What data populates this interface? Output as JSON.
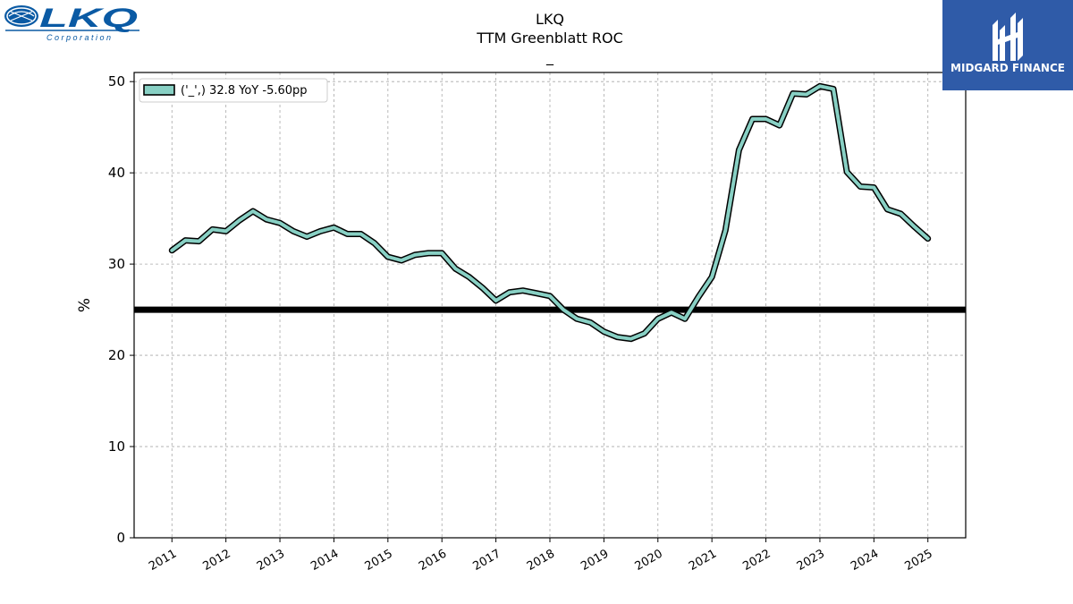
{
  "header": {
    "company": "LKQ",
    "metric": "TTM Greenblatt ROC",
    "subtitle": "_"
  },
  "logos": {
    "left": {
      "text": "LKQ",
      "subtext": "Corporation",
      "color": "#0a5aa4"
    },
    "right": {
      "text": "MIDGARD FINANCE",
      "background": "#2f5ba8"
    }
  },
  "chart_data": {
    "type": "line",
    "title": "LKQ",
    "subtitle": "TTM Greenblatt ROC",
    "xlabel": "",
    "ylabel": "%",
    "ylim": [
      0,
      51
    ],
    "yticks": [
      0,
      10,
      20,
      30,
      40,
      50
    ],
    "xlim": [
      2010.3,
      2025.7
    ],
    "xticks": [
      2011,
      2012,
      2013,
      2014,
      2015,
      2016,
      2017,
      2018,
      2019,
      2020,
      2021,
      2022,
      2023,
      2024,
      2025
    ],
    "xtick_labels": [
      "2011",
      "2012",
      "2013",
      "2014",
      "2015",
      "2016",
      "2017",
      "2018",
      "2019",
      "2020",
      "2021",
      "2022",
      "2023",
      "2024",
      "2025"
    ],
    "grid": true,
    "legend": {
      "placement": "top-left",
      "label": "('_',) 32.8 YoY -5.60pp"
    },
    "reference_line": {
      "y": 25,
      "color": "#000000"
    },
    "series": [
      {
        "name": "('_',) 32.8 YoY -5.60pp",
        "color": "#88d0c4",
        "outline": "#000000",
        "x": [
          2011.0,
          2011.25,
          2011.5,
          2011.75,
          2012.0,
          2012.25,
          2012.5,
          2012.75,
          2013.0,
          2013.25,
          2013.5,
          2013.75,
          2014.0,
          2014.25,
          2014.5,
          2014.75,
          2015.0,
          2015.25,
          2015.5,
          2015.75,
          2016.0,
          2016.25,
          2016.5,
          2016.75,
          2017.0,
          2017.25,
          2017.5,
          2017.75,
          2018.0,
          2018.25,
          2018.5,
          2018.75,
          2019.0,
          2019.25,
          2019.5,
          2019.75,
          2020.0,
          2020.25,
          2020.5,
          2020.75,
          2021.0,
          2021.25,
          2021.5,
          2021.75,
          2022.0,
          2022.25,
          2022.5,
          2022.75,
          2023.0,
          2023.25,
          2023.5,
          2023.75,
          2024.0,
          2024.25,
          2024.5,
          2024.75,
          2025.0
        ],
        "y": [
          31.5,
          32.6,
          32.5,
          33.8,
          33.6,
          34.8,
          35.8,
          34.9,
          34.5,
          33.6,
          33.0,
          33.6,
          34.0,
          33.3,
          33.3,
          32.3,
          30.8,
          30.4,
          31.0,
          31.2,
          31.2,
          29.5,
          28.6,
          27.4,
          26.0,
          26.9,
          27.1,
          26.8,
          26.5,
          25.0,
          24.0,
          23.6,
          22.6,
          22.0,
          21.8,
          22.4,
          24.0,
          24.7,
          24.0,
          26.4,
          28.6,
          33.7,
          42.5,
          45.9,
          45.9,
          45.2,
          48.7,
          48.6,
          49.5,
          49.2,
          40.1,
          38.5,
          38.4,
          36.0,
          35.5,
          34.1,
          32.8
        ]
      }
    ]
  }
}
